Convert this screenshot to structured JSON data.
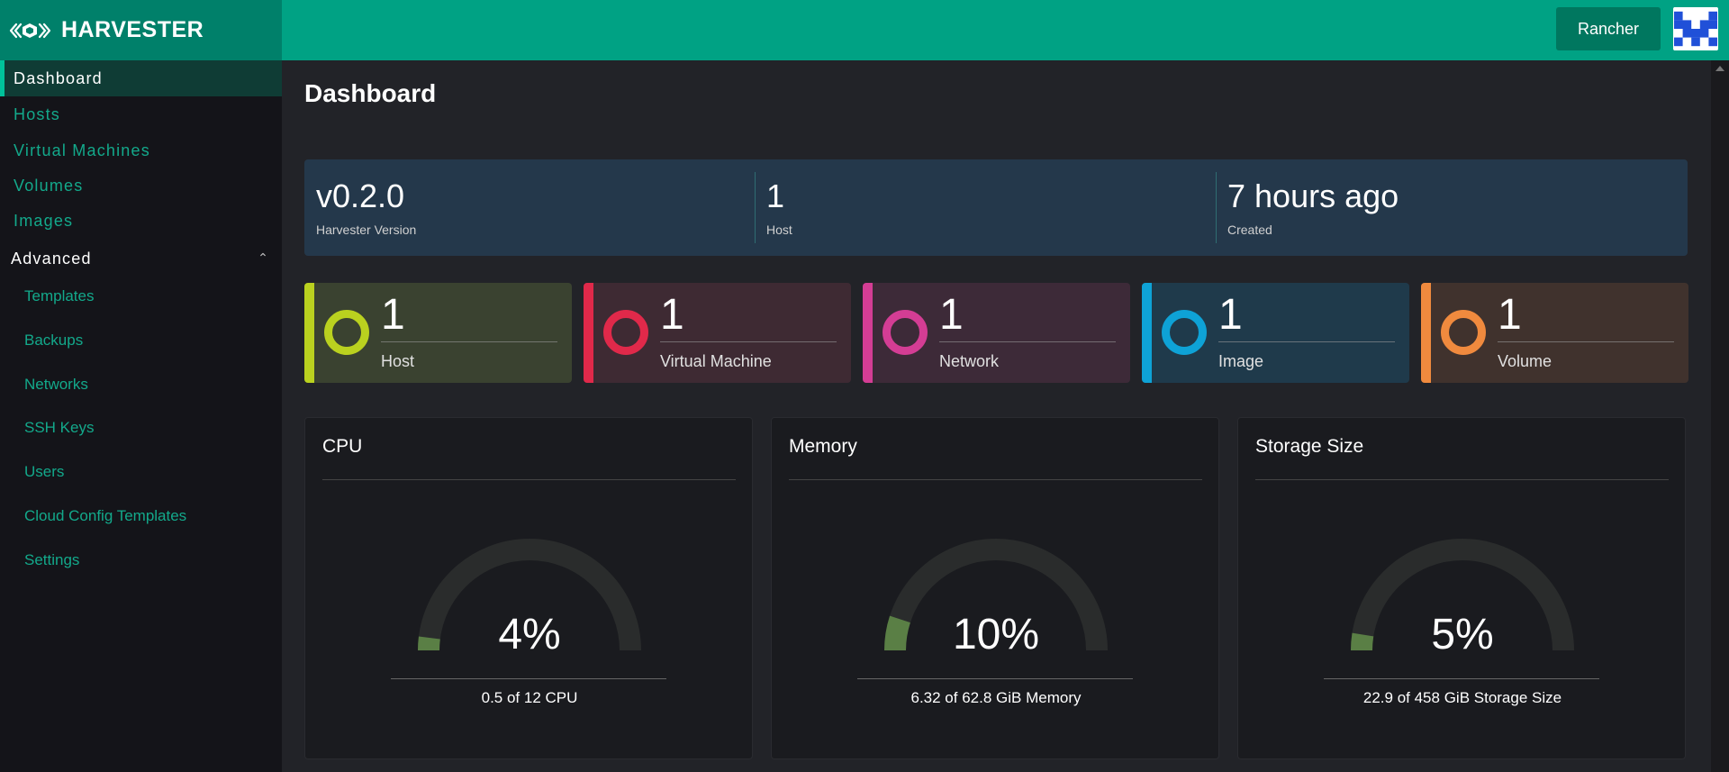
{
  "header": {
    "brand": "HARVESTER",
    "rancher_button": "Rancher"
  },
  "sidebar": {
    "items": [
      {
        "label": "Dashboard",
        "active": true
      },
      {
        "label": "Hosts"
      },
      {
        "label": "Virtual Machines"
      },
      {
        "label": "Volumes"
      },
      {
        "label": "Images"
      }
    ],
    "group": {
      "label": "Advanced",
      "expanded": true
    },
    "sub_items": [
      {
        "label": "Templates"
      },
      {
        "label": "Backups"
      },
      {
        "label": "Networks"
      },
      {
        "label": "SSH Keys"
      },
      {
        "label": "Users"
      },
      {
        "label": "Cloud Config Templates"
      },
      {
        "label": "Settings"
      }
    ]
  },
  "main": {
    "title": "Dashboard",
    "summary": [
      {
        "value": "v0.2.0",
        "label": "Harvester Version"
      },
      {
        "value": "1",
        "label": "Host"
      },
      {
        "value": "7 hours ago",
        "label": "Created"
      }
    ],
    "counts": [
      {
        "value": "1",
        "label": "Host",
        "color": "#bad11f",
        "bg": "#3a4230"
      },
      {
        "value": "1",
        "label": "Virtual Machine",
        "color": "#e0294a",
        "bg": "#3e2a33"
      },
      {
        "value": "1",
        "label": "Network",
        "color": "#d43d94",
        "bg": "#3d2a38"
      },
      {
        "value": "1",
        "label": "Image",
        "color": "#0ea2d6",
        "bg": "#1f3a4b"
      },
      {
        "value": "1",
        "label": "Volume",
        "color": "#f08a3e",
        "bg": "#40322d"
      }
    ],
    "gauges": [
      {
        "title": "CPU",
        "percent": "4%",
        "fraction": 0.04,
        "detail": "0.5 of 12 CPU"
      },
      {
        "title": "Memory",
        "percent": "10%",
        "fraction": 0.1,
        "detail": "6.32 of 62.8 GiB Memory"
      },
      {
        "title": "Storage Size",
        "percent": "5%",
        "fraction": 0.05,
        "detail": "22.9 of 458 GiB Storage Size"
      }
    ]
  },
  "colors": {
    "header": "#00a284",
    "brand_bg": "#00806a",
    "accent_text": "#13a98b",
    "gauge_fill": "#5a7f45",
    "gauge_track": "#2a2c2c"
  }
}
